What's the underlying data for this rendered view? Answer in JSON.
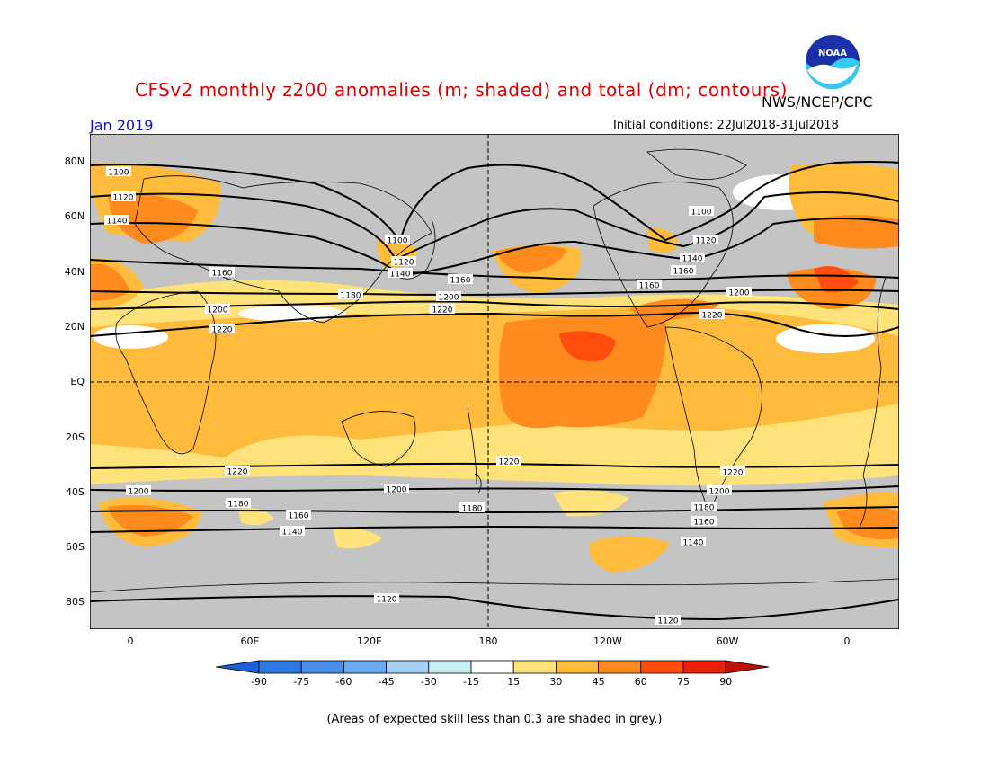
{
  "title": "CFSv2 monthly z200 anomalies (m; shaded) and total (dm; contours)",
  "agency": "NWS/NCEP/CPC",
  "logo_text": "NOAA",
  "month": "Jan 2019",
  "initial_conditions": "Initial conditions: 22Jul2018-31Jul2018",
  "lat_labels": [
    "80N",
    "60N",
    "40N",
    "20N",
    "EQ",
    "20S",
    "40S",
    "60S",
    "80S"
  ],
  "lon_labels": [
    "0",
    "60E",
    "120E",
    "180",
    "120W",
    "60W",
    "0"
  ],
  "contour_labels": [
    "1100",
    "1120",
    "1140",
    "1160",
    "1180",
    "1200",
    "1220"
  ],
  "colorbar": {
    "labels": [
      "-90",
      "-75",
      "-60",
      "-45",
      "-30",
      "-15",
      "15",
      "30",
      "45",
      "60",
      "75",
      "90"
    ],
    "colors": [
      "#1e60d8",
      "#2e78e4",
      "#4a90e8",
      "#6aaaf0",
      "#a6d2f6",
      "#c8f0f0",
      "#ffffff",
      "#ffe37a",
      "#ffbb3c",
      "#ff8a1e",
      "#ff4e0e",
      "#e8200a",
      "#c01008"
    ]
  },
  "footnote": "(Areas of expected skill less than 0.3 are shaded in grey.)",
  "shading_colors": {
    "grey": "#c4c4c4",
    "c15": "#ffe37a",
    "c30": "#ffbb3c",
    "c45": "#ff8a1e",
    "c60": "#ff4e0e"
  }
}
